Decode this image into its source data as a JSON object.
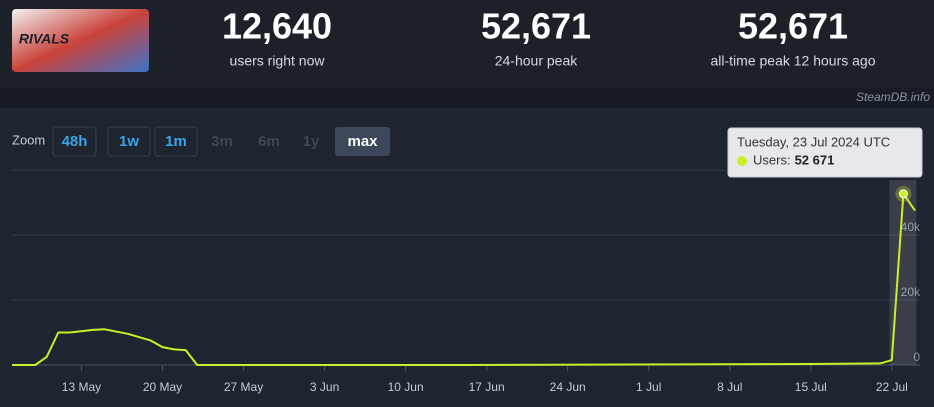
{
  "header": {
    "logo_text": "RIVALS",
    "stats": [
      {
        "value": "12,640",
        "label": "users right now"
      },
      {
        "value": "52,671",
        "label": "24-hour peak"
      },
      {
        "value": "52,671",
        "label": "all-time peak 12 hours ago"
      }
    ],
    "source": "SteamDB.info"
  },
  "zoom": {
    "label": "Zoom",
    "buttons": [
      {
        "text": "48h",
        "state": "enabled"
      },
      {
        "text": "1w",
        "state": "enabled"
      },
      {
        "text": "1m",
        "state": "enabled"
      },
      {
        "text": "3m",
        "state": "disabled"
      },
      {
        "text": "6m",
        "state": "disabled"
      },
      {
        "text": "1y",
        "state": "disabled"
      },
      {
        "text": "max",
        "state": "active"
      }
    ]
  },
  "chart_data": {
    "type": "line",
    "color": "#c8f026",
    "x": [
      "2024-05-07",
      "2024-05-09",
      "2024-05-10",
      "2024-05-11",
      "2024-05-12",
      "2024-05-14",
      "2024-05-15",
      "2024-05-17",
      "2024-05-19",
      "2024-05-20",
      "2024-05-21",
      "2024-05-22",
      "2024-05-23",
      "2024-06-15",
      "2024-07-15",
      "2024-07-21",
      "2024-07-22",
      "2024-07-23",
      "2024-07-24"
    ],
    "values": [
      0,
      0,
      2500,
      10000,
      10000,
      10800,
      11000,
      9600,
      7500,
      5500,
      4800,
      4600,
      0,
      0,
      300,
      500,
      1500,
      52671,
      47500
    ],
    "xlim": [
      "2024-05-07",
      "2024-07-24"
    ],
    "xticks": [
      {
        "value": "2024-05-13",
        "label": "13 May"
      },
      {
        "value": "2024-05-20",
        "label": "20 May"
      },
      {
        "value": "2024-05-27",
        "label": "27 May"
      },
      {
        "value": "2024-06-03",
        "label": "3 Jun"
      },
      {
        "value": "2024-06-10",
        "label": "10 Jun"
      },
      {
        "value": "2024-06-17",
        "label": "17 Jun"
      },
      {
        "value": "2024-06-24",
        "label": "24 Jun"
      },
      {
        "value": "2024-07-01",
        "label": "1 Jul"
      },
      {
        "value": "2024-07-08",
        "label": "8 Jul"
      },
      {
        "value": "2024-07-15",
        "label": "15 Jul"
      },
      {
        "value": "2024-07-22",
        "label": "22 Jul"
      }
    ],
    "ylim": [
      0,
      60000
    ],
    "yticks": [
      0,
      {
        "value": 20000,
        "label": "20k"
      },
      {
        "value": 40000,
        "label": "40k"
      }
    ],
    "grid": true,
    "tooltip": {
      "title": "Tuesday, 23 Jul 2024 UTC",
      "label": "Users:",
      "value": 52671,
      "value_label": "52 671",
      "index": 17
    }
  }
}
